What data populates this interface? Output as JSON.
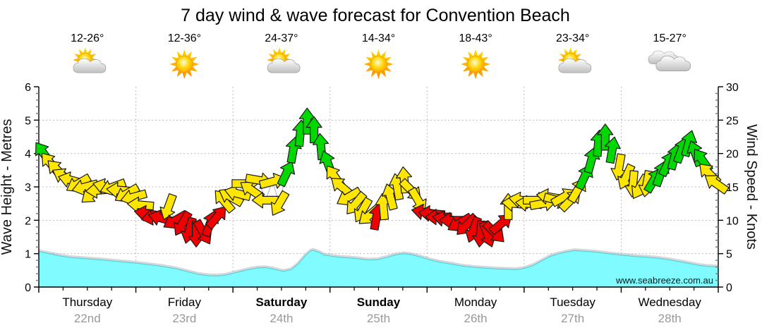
{
  "title": "7 day wind & wave forecast for Convention Beach",
  "watermark": "www.seabreeze.com.au",
  "axes": {
    "left_title": "Wave Height - Metres",
    "right_title": "Wind Speed - Knots",
    "left_ticks": [
      0,
      1,
      2,
      3,
      4,
      5,
      6
    ],
    "right_ticks": [
      0,
      5,
      10,
      15,
      20,
      25,
      30
    ]
  },
  "days": [
    {
      "name": "Thursday",
      "date": "22nd",
      "temps": "12-26°",
      "icon": "sun-cloud",
      "weekend": false
    },
    {
      "name": "Friday",
      "date": "23rd",
      "temps": "12-36°",
      "icon": "sun",
      "weekend": false
    },
    {
      "name": "Saturday",
      "date": "24th",
      "temps": "24-37°",
      "icon": "sun-cloud",
      "weekend": true
    },
    {
      "name": "Sunday",
      "date": "25th",
      "temps": "14-34°",
      "icon": "sun",
      "weekend": true
    },
    {
      "name": "Monday",
      "date": "26th",
      "temps": "18-43°",
      "icon": "sun",
      "weekend": false
    },
    {
      "name": "Tuesday",
      "date": "27th",
      "temps": "23-34°",
      "icon": "sun-cloud",
      "weekend": false
    },
    {
      "name": "Wednesday",
      "date": "28th",
      "temps": "15-27°",
      "icon": "clouds",
      "weekend": false
    }
  ],
  "colors": {
    "arrow_green": "#00D800",
    "arrow_yellow": "#FFE600",
    "arrow_red": "#F00000",
    "arrow_outline": "#1A1A1A",
    "wave_fill": "#80FBFF",
    "wave_edge": "#49CDD8",
    "wave_shadow": "#AFB6BA",
    "grid": "#BCBCBC",
    "axis": "#000000",
    "date_text": "#999999",
    "watermark_text": "#9FD4DA",
    "trend_line": "#9A9A9A"
  },
  "chart_data": {
    "type": "combo",
    "title": "7 day wind & wave forecast for Convention Beach",
    "x_axis": {
      "unit": "days from Thursday 22nd 00:00",
      "range": [
        0,
        7
      ],
      "day_labels": [
        "Thursday 22nd",
        "Friday 23rd",
        "Saturday 24th",
        "Sunday 25th",
        "Monday 26th",
        "Tuesday 27th",
        "Wednesday 28th"
      ]
    },
    "y_left": {
      "label": "Wave Height - Metres",
      "range": [
        0,
        6
      ]
    },
    "y_right": {
      "label": "Wind Speed - Knots",
      "range": [
        0,
        30
      ]
    },
    "grid": "dotted gray: horizontal every 1 m / 5 kn, vertical at day boundaries",
    "wind_series": {
      "name": "Wind speed and direction arrows",
      "start_t": 0.05,
      "step_t": 0.07143,
      "note": "each point = [knots, arrow heading degrees (0=right/E, 90=down/S, 180=left/W, 270=up/N), color g=green y=yellow r=red]",
      "points": [
        [
          20,
          235,
          "g"
        ],
        [
          18.5,
          230,
          "y"
        ],
        [
          17.5,
          225,
          "y"
        ],
        [
          16.5,
          210,
          "y"
        ],
        [
          16,
          195,
          "y"
        ],
        [
          15.5,
          150,
          "y"
        ],
        [
          15,
          165,
          "y"
        ],
        [
          14,
          140,
          "y"
        ],
        [
          14.5,
          175,
          "y"
        ],
        [
          15,
          195,
          "y"
        ],
        [
          15,
          160,
          "y"
        ],
        [
          14.5,
          185,
          "y"
        ],
        [
          14,
          150,
          "y"
        ],
        [
          13.5,
          165,
          "y"
        ],
        [
          12.3,
          185,
          "y"
        ],
        [
          11,
          190,
          "r"
        ],
        [
          10.5,
          170,
          "r"
        ],
        [
          10.3,
          195,
          "r"
        ],
        [
          12,
          110,
          "y"
        ],
        [
          10,
          150,
          "r"
        ],
        [
          9.5,
          120,
          "r"
        ],
        [
          8.5,
          105,
          "r"
        ],
        [
          8,
          90,
          "r"
        ],
        [
          8.2,
          60,
          "r"
        ],
        [
          9.5,
          290,
          "r"
        ],
        [
          10.5,
          310,
          "r"
        ],
        [
          12.9,
          230,
          "y"
        ],
        [
          13.5,
          210,
          "y"
        ],
        [
          14,
          195,
          "y"
        ],
        [
          15.5,
          0,
          "y"
        ],
        [
          14.5,
          215,
          "y"
        ],
        [
          16,
          10,
          "y"
        ],
        [
          13,
          180,
          "y"
        ],
        [
          15.8,
          345,
          "y"
        ],
        [
          12.5,
          120,
          "y"
        ],
        [
          17,
          295,
          "g"
        ],
        [
          20.5,
          280,
          "g"
        ],
        [
          23,
          275,
          "g"
        ],
        [
          24.8,
          270,
          "g"
        ],
        [
          23.5,
          270,
          "g"
        ],
        [
          21,
          265,
          "g"
        ],
        [
          18.5,
          250,
          "g"
        ],
        [
          16.5,
          235,
          "y"
        ],
        [
          15,
          220,
          "y"
        ],
        [
          13.5,
          150,
          "y"
        ],
        [
          12.5,
          130,
          "y"
        ],
        [
          11.5,
          120,
          "y"
        ],
        [
          10.8,
          140,
          "y"
        ],
        [
          10.5,
          280,
          "r"
        ],
        [
          12,
          265,
          "y"
        ],
        [
          13.5,
          255,
          "y"
        ],
        [
          15,
          260,
          "y"
        ],
        [
          16,
          265,
          "y"
        ],
        [
          14.5,
          45,
          "y"
        ],
        [
          13,
          60,
          "y"
        ],
        [
          11.2,
          190,
          "r"
        ],
        [
          11,
          185,
          "r"
        ],
        [
          10.5,
          180,
          "r"
        ],
        [
          10.2,
          190,
          "r"
        ],
        [
          10,
          180,
          "r"
        ],
        [
          9.6,
          150,
          "r"
        ],
        [
          9.3,
          135,
          "r"
        ],
        [
          8.6,
          110,
          "r"
        ],
        [
          8,
          95,
          "r"
        ],
        [
          7.9,
          70,
          "r"
        ],
        [
          8.2,
          45,
          "r"
        ],
        [
          9.5,
          320,
          "r"
        ],
        [
          12,
          270,
          "y"
        ],
        [
          12.5,
          185,
          "y"
        ],
        [
          13,
          190,
          "y"
        ],
        [
          12.5,
          185,
          "y"
        ],
        [
          13,
          0,
          "y"
        ],
        [
          12.5,
          350,
          "y"
        ],
        [
          13.5,
          190,
          "y"
        ],
        [
          13,
          15,
          "y"
        ],
        [
          13.5,
          330,
          "y"
        ],
        [
          13,
          315,
          "y"
        ],
        [
          14.5,
          300,
          "y"
        ],
        [
          16.5,
          295,
          "g"
        ],
        [
          19,
          285,
          "g"
        ],
        [
          21.5,
          275,
          "g"
        ],
        [
          22.4,
          270,
          "g"
        ],
        [
          20.5,
          280,
          "g"
        ],
        [
          18,
          100,
          "y"
        ],
        [
          16.5,
          115,
          "y"
        ],
        [
          15.5,
          95,
          "y"
        ],
        [
          15,
          120,
          "y"
        ],
        [
          15.5,
          100,
          "y"
        ],
        [
          16,
          300,
          "g"
        ],
        [
          17,
          290,
          "g"
        ],
        [
          18.5,
          295,
          "g"
        ],
        [
          19.5,
          285,
          "g"
        ],
        [
          20.5,
          290,
          "g"
        ],
        [
          21.5,
          285,
          "g"
        ],
        [
          20,
          250,
          "g"
        ],
        [
          19,
          235,
          "g"
        ],
        [
          17,
          225,
          "y"
        ],
        [
          15.5,
          215,
          "y"
        ]
      ]
    },
    "wave_series": {
      "name": "Wave height (m)",
      "note": "each point = [t in days, metres]",
      "points": [
        [
          0,
          1.06
        ],
        [
          0.11,
          1.0
        ],
        [
          0.22,
          0.93
        ],
        [
          0.33,
          0.88
        ],
        [
          0.47,
          0.85
        ],
        [
          0.62,
          0.82
        ],
        [
          0.76,
          0.78
        ],
        [
          0.91,
          0.74
        ],
        [
          1.04,
          0.7
        ],
        [
          1.16,
          0.66
        ],
        [
          1.27,
          0.62
        ],
        [
          1.42,
          0.54
        ],
        [
          1.53,
          0.46
        ],
        [
          1.64,
          0.38
        ],
        [
          1.74,
          0.34
        ],
        [
          1.84,
          0.33
        ],
        [
          1.93,
          0.36
        ],
        [
          2.03,
          0.43
        ],
        [
          2.14,
          0.51
        ],
        [
          2.25,
          0.57
        ],
        [
          2.33,
          0.58
        ],
        [
          2.4,
          0.55
        ],
        [
          2.47,
          0.5
        ],
        [
          2.52,
          0.47
        ],
        [
          2.6,
          0.52
        ],
        [
          2.67,
          0.68
        ],
        [
          2.74,
          0.92
        ],
        [
          2.8,
          1.08
        ],
        [
          2.83,
          1.1
        ],
        [
          2.89,
          1.03
        ],
        [
          2.94,
          0.96
        ],
        [
          3.02,
          0.92
        ],
        [
          3.1,
          0.89
        ],
        [
          3.2,
          0.87
        ],
        [
          3.31,
          0.84
        ],
        [
          3.39,
          0.81
        ],
        [
          3.49,
          0.82
        ],
        [
          3.58,
          0.88
        ],
        [
          3.67,
          0.96
        ],
        [
          3.76,
          1.0
        ],
        [
          3.84,
          0.97
        ],
        [
          3.93,
          0.9
        ],
        [
          4.02,
          0.82
        ],
        [
          4.12,
          0.75
        ],
        [
          4.24,
          0.69
        ],
        [
          4.36,
          0.63
        ],
        [
          4.48,
          0.59
        ],
        [
          4.62,
          0.56
        ],
        [
          4.72,
          0.54
        ],
        [
          4.83,
          0.53
        ],
        [
          4.91,
          0.52
        ],
        [
          4.99,
          0.55
        ],
        [
          5.09,
          0.64
        ],
        [
          5.18,
          0.78
        ],
        [
          5.27,
          0.92
        ],
        [
          5.36,
          1.0
        ],
        [
          5.44,
          1.05
        ],
        [
          5.52,
          1.09
        ],
        [
          5.62,
          1.07
        ],
        [
          5.72,
          1.05
        ],
        [
          5.84,
          1.01
        ],
        [
          5.95,
          0.97
        ],
        [
          6.05,
          0.94
        ],
        [
          6.16,
          0.91
        ],
        [
          6.27,
          0.89
        ],
        [
          6.38,
          0.86
        ],
        [
          6.49,
          0.82
        ],
        [
          6.6,
          0.76
        ],
        [
          6.71,
          0.7
        ],
        [
          6.8,
          0.65
        ],
        [
          6.88,
          0.62
        ],
        [
          7,
          0.6
        ]
      ]
    }
  }
}
